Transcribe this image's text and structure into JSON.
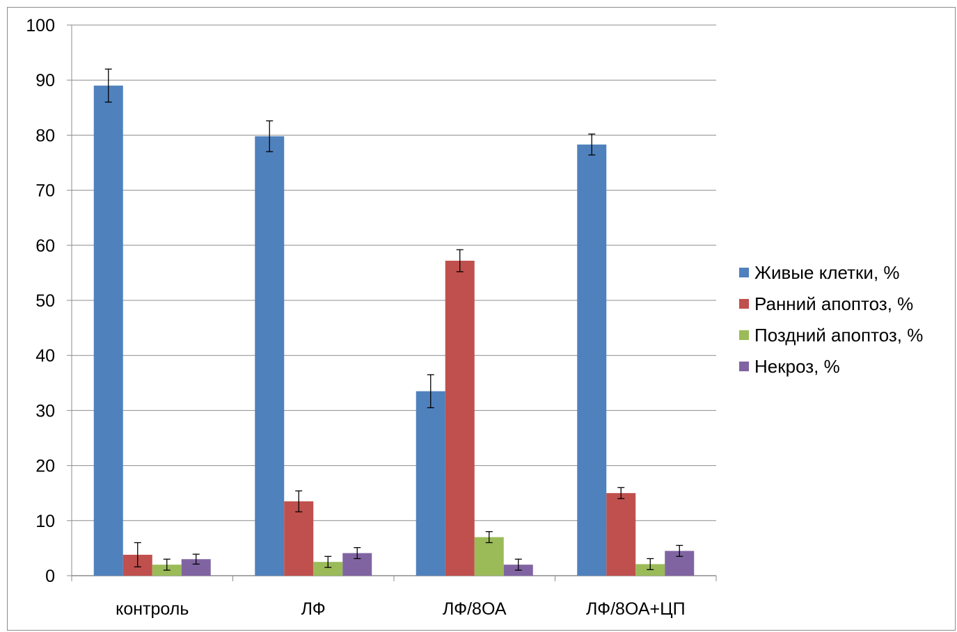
{
  "chart_data": {
    "type": "bar",
    "title": "",
    "xlabel": "",
    "ylabel": "",
    "ylim": [
      0,
      100
    ],
    "yticks": [
      0,
      10,
      20,
      30,
      40,
      50,
      60,
      70,
      80,
      90,
      100
    ],
    "grid": true,
    "legend_position": "right",
    "categories": [
      "контроль",
      "ЛФ",
      "ЛФ/8ОА",
      "ЛФ/8ОА+ЦП"
    ],
    "series": [
      {
        "name": "Живые клетки, %",
        "color": "#4f81bd",
        "values": [
          89,
          79.8,
          33.5,
          78.3
        ],
        "errors": [
          3,
          2.8,
          3,
          1.9
        ]
      },
      {
        "name": "Ранний апоптоз, %",
        "color": "#c0504d",
        "values": [
          3.8,
          13.5,
          57.2,
          15
        ],
        "errors": [
          2.2,
          1.9,
          2,
          1
        ]
      },
      {
        "name": "Поздний апоптоз, %",
        "color": "#9bbb59",
        "values": [
          2,
          2.5,
          7,
          2.1
        ],
        "errors": [
          1,
          1,
          1,
          1
        ]
      },
      {
        "name": "Некроз, %",
        "color": "#8064a2",
        "values": [
          3,
          4.1,
          2,
          4.5
        ],
        "errors": [
          0.9,
          1,
          1,
          1
        ]
      }
    ]
  }
}
